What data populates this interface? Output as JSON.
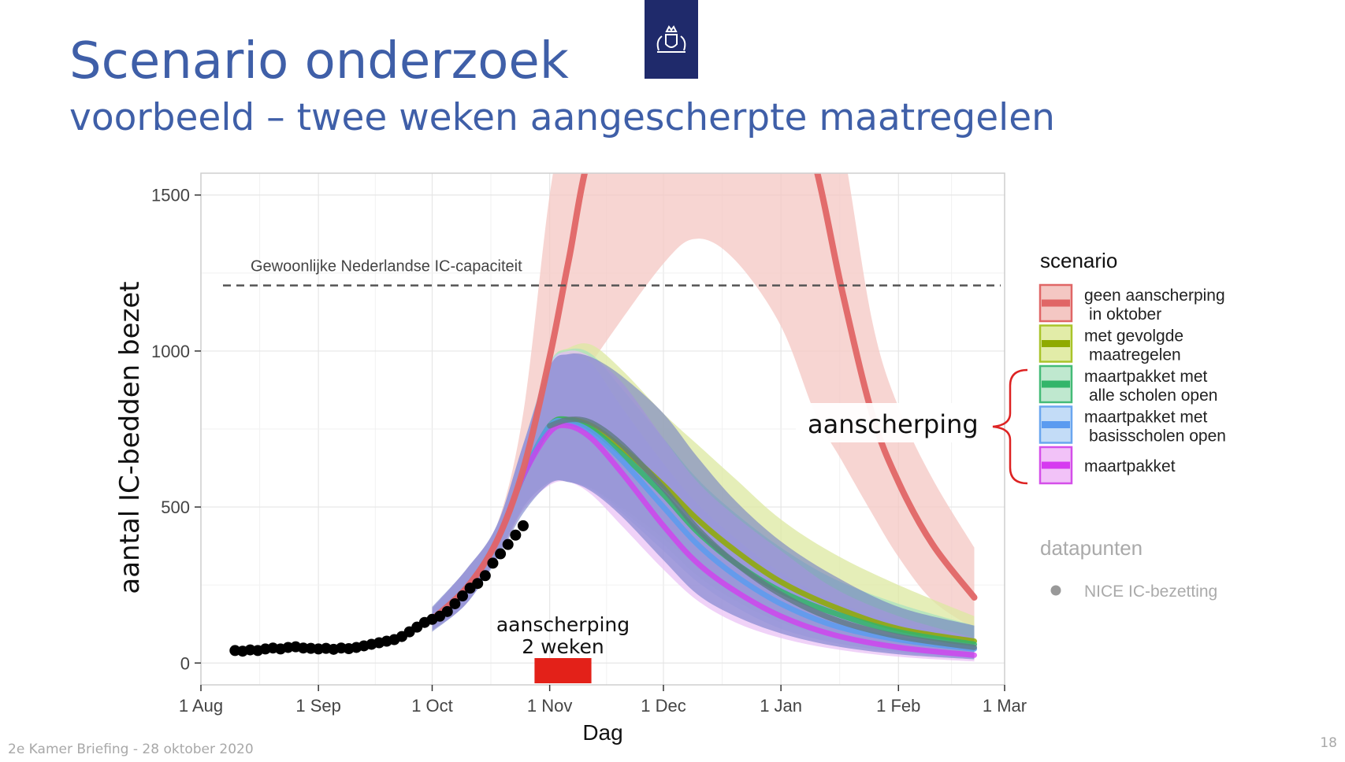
{
  "slide": {
    "title": "Scenario onderzoek",
    "subtitle": "voorbeeld – twee weken aangescherpte maatregelen",
    "footer": "2e Kamer Briefing - 28 oktober 2020",
    "page_number": "18",
    "logo_icon": "coat-of-arms-icon"
  },
  "chart_data": {
    "type": "line",
    "xlabel": "Dag",
    "ylabel": "aantal IC-bedden bezet",
    "x_unit": "date",
    "xlim": [
      "2020-08-01",
      "2021-03-01"
    ],
    "ylim": [
      -70,
      1570
    ],
    "x_ticks": [
      {
        "date": "2020-08-01",
        "label": "1 Aug"
      },
      {
        "date": "2020-09-01",
        "label": "1 Sep"
      },
      {
        "date": "2020-10-01",
        "label": "1 Oct"
      },
      {
        "date": "2020-11-01",
        "label": "1 Nov"
      },
      {
        "date": "2020-12-01",
        "label": "1 Dec"
      },
      {
        "date": "2021-01-01",
        "label": "1 Jan"
      },
      {
        "date": "2021-02-01",
        "label": "1 Feb"
      },
      {
        "date": "2021-03-01",
        "label": "1 Mar"
      }
    ],
    "y_ticks": [
      0,
      500,
      1000,
      1500
    ],
    "grid": true,
    "capacity_line": {
      "y": 1210,
      "label": "Gewoonlijke Nederlandse IC-capaciteit",
      "color": "#555555"
    },
    "intervention": {
      "start": "2020-10-28",
      "end": "2020-11-12",
      "label_line1": "aanscherping",
      "label_line2": "2 weken",
      "color": "#e32119"
    },
    "legend": {
      "title": "scenario",
      "position": "right",
      "entries": [
        {
          "label_line1": "geen aanscherping",
          "label_line2": "in oktober",
          "line_color": "#e06666",
          "fill_color": "#f4c7c3",
          "border_color": "#e06666"
        },
        {
          "label_line1": "met gevolgde",
          "label_line2": "maatregelen",
          "line_color": "#8faa00",
          "fill_color": "#e2eca8",
          "border_color": "#a9c42a"
        },
        {
          "label_line1": "maartpakket met",
          "label_line2": "alle scholen open",
          "line_color": "#33b56a",
          "fill_color": "#bfe8cf",
          "border_color": "#44bb77"
        },
        {
          "label_line1": "maartpakket met",
          "label_line2": "basisscholen open",
          "line_color": "#5b9bf0",
          "fill_color": "#c3dcf7",
          "border_color": "#6aa6ef"
        },
        {
          "label_line1": "maartpakket",
          "label_line2": "",
          "line_color": "#d63af0",
          "fill_color": "#f2c2f8",
          "border_color": "#d54fe9"
        }
      ],
      "bracket_label": "aanscherping",
      "bracket_color": "#dd2222",
      "points_title": "datapunten",
      "points_entry": "NICE IC-bezetting"
    },
    "series": [
      {
        "name": "geen aanscherping in oktober",
        "line_color": "#e06666",
        "band_color": "#f4c7c3",
        "band_opacity": 0.75,
        "line_opacity": 0.95,
        "points": [
          [
            "2020-10-01",
            140,
            105,
            175
          ],
          [
            "2020-10-10",
            240,
            190,
            300
          ],
          [
            "2020-10-18",
            390,
            340,
            440
          ],
          [
            "2020-10-25",
            620,
            500,
            800
          ],
          [
            "2020-11-01",
            980,
            700,
            1500
          ],
          [
            "2020-11-06",
            1290,
            850,
            1800
          ],
          [
            "2020-11-13",
            1700,
            980,
            2100
          ],
          [
            "2020-12-01",
            2300,
            1280,
            2500
          ],
          [
            "2020-12-10",
            2350,
            1360,
            2500
          ],
          [
            "2020-12-20",
            2250,
            1290,
            2450
          ],
          [
            "2021-01-01",
            1950,
            1080,
            2300
          ],
          [
            "2021-01-10",
            1600,
            800,
            2000
          ],
          [
            "2021-01-17",
            1200,
            650,
            1680
          ],
          [
            "2021-01-25",
            800,
            480,
            1100
          ],
          [
            "2021-02-01",
            580,
            340,
            820
          ],
          [
            "2021-02-10",
            380,
            200,
            590
          ],
          [
            "2021-02-21",
            210,
            110,
            370
          ]
        ]
      },
      {
        "name": "met gevolgde maatregelen",
        "line_color": "#8faa00",
        "band_color": "#dce8a0",
        "band_opacity": 0.75,
        "line_opacity": 0.85,
        "points": [
          [
            "2020-10-01",
            140,
            105,
            175
          ],
          [
            "2020-10-10",
            240,
            190,
            300
          ],
          [
            "2020-10-18",
            390,
            340,
            440
          ],
          [
            "2020-10-25",
            600,
            500,
            700
          ],
          [
            "2020-11-01",
            760,
            580,
            960
          ],
          [
            "2020-11-06",
            780,
            580,
            1010
          ],
          [
            "2020-11-12",
            760,
            560,
            1020
          ],
          [
            "2020-11-20",
            690,
            500,
            940
          ],
          [
            "2020-12-01",
            570,
            400,
            800
          ],
          [
            "2020-12-10",
            460,
            310,
            700
          ],
          [
            "2020-12-20",
            360,
            230,
            590
          ],
          [
            "2021-01-01",
            260,
            150,
            460
          ],
          [
            "2021-01-15",
            180,
            95,
            350
          ],
          [
            "2021-02-01",
            110,
            55,
            250
          ],
          [
            "2021-02-21",
            70,
            30,
            150
          ]
        ]
      },
      {
        "name": "maartpakket met alle scholen open",
        "line_color": "#33b56a",
        "band_color": "#a9e2bf",
        "band_opacity": 0.75,
        "line_opacity": 0.85,
        "points": [
          [
            "2020-10-01",
            140,
            105,
            175
          ],
          [
            "2020-10-10",
            240,
            190,
            300
          ],
          [
            "2020-10-18",
            390,
            340,
            440
          ],
          [
            "2020-10-25",
            600,
            500,
            700
          ],
          [
            "2020-11-01",
            760,
            580,
            960
          ],
          [
            "2020-11-06",
            780,
            580,
            1005
          ],
          [
            "2020-11-12",
            750,
            560,
            990
          ],
          [
            "2020-11-20",
            670,
            490,
            880
          ],
          [
            "2020-12-01",
            540,
            380,
            720
          ],
          [
            "2020-12-10",
            420,
            280,
            590
          ],
          [
            "2020-12-20",
            320,
            200,
            480
          ],
          [
            "2021-01-01",
            230,
            130,
            370
          ],
          [
            "2021-01-15",
            160,
            85,
            270
          ],
          [
            "2021-02-01",
            100,
            50,
            190
          ],
          [
            "2021-02-21",
            60,
            25,
            120
          ]
        ]
      },
      {
        "name": "maartpakket met basisscholen open",
        "line_color": "#5b9bf0",
        "band_color": "#b5d1f3",
        "band_opacity": 0.7,
        "line_opacity": 0.85,
        "points": [
          [
            "2020-10-01",
            140,
            105,
            175
          ],
          [
            "2020-10-10",
            240,
            190,
            300
          ],
          [
            "2020-10-18",
            390,
            340,
            440
          ],
          [
            "2020-10-25",
            600,
            500,
            700
          ],
          [
            "2020-11-01",
            760,
            580,
            960
          ],
          [
            "2020-11-06",
            770,
            580,
            990
          ],
          [
            "2020-11-12",
            740,
            555,
            960
          ],
          [
            "2020-11-20",
            650,
            480,
            820
          ],
          [
            "2020-12-01",
            500,
            360,
            640
          ],
          [
            "2020-12-10",
            380,
            260,
            510
          ],
          [
            "2020-12-20",
            280,
            180,
            400
          ],
          [
            "2021-01-01",
            190,
            110,
            290
          ],
          [
            "2021-01-15",
            120,
            65,
            200
          ],
          [
            "2021-02-01",
            75,
            35,
            130
          ],
          [
            "2021-02-21",
            45,
            15,
            80
          ]
        ]
      },
      {
        "name": "maartpakket",
        "line_color": "#d63af0",
        "band_color": "#eabff5",
        "band_opacity": 0.7,
        "line_opacity": 0.75,
        "points": [
          [
            "2020-10-01",
            140,
            105,
            175
          ],
          [
            "2020-10-10",
            240,
            190,
            300
          ],
          [
            "2020-10-18",
            390,
            340,
            440
          ],
          [
            "2020-10-25",
            600,
            490,
            700
          ],
          [
            "2020-11-01",
            740,
            570,
            950
          ],
          [
            "2020-11-06",
            760,
            580,
            1000
          ],
          [
            "2020-11-12",
            720,
            540,
            980
          ],
          [
            "2020-11-20",
            610,
            440,
            900
          ],
          [
            "2020-12-01",
            440,
            300,
            720
          ],
          [
            "2020-12-10",
            320,
            200,
            580
          ],
          [
            "2020-12-20",
            230,
            130,
            470
          ],
          [
            "2021-01-01",
            150,
            80,
            360
          ],
          [
            "2021-01-15",
            90,
            45,
            240
          ],
          [
            "2021-02-01",
            50,
            20,
            150
          ],
          [
            "2021-02-21",
            25,
            5,
            80
          ]
        ]
      }
    ],
    "overlay_band": {
      "color": "#6673c4",
      "opacity": 0.55,
      "points": [
        [
          "2020-10-01",
          100,
          180
        ],
        [
          "2020-10-10",
          190,
          300
        ],
        [
          "2020-10-18",
          330,
          440
        ],
        [
          "2020-10-25",
          480,
          700
        ],
        [
          "2020-11-01",
          575,
          950
        ],
        [
          "2020-11-06",
          580,
          990
        ],
        [
          "2020-11-12",
          550,
          980
        ],
        [
          "2020-11-20",
          470,
          920
        ],
        [
          "2020-12-01",
          330,
          800
        ],
        [
          "2020-12-10",
          220,
          660
        ],
        [
          "2020-12-20",
          150,
          520
        ],
        [
          "2021-01-01",
          95,
          390
        ],
        [
          "2021-01-15",
          55,
          280
        ],
        [
          "2021-02-01",
          28,
          180
        ],
        [
          "2021-02-21",
          12,
          120
        ]
      ]
    },
    "overlay_line": {
      "color": "#5f7a84",
      "opacity": 0.8,
      "points": [
        [
          "2020-11-01",
          760
        ],
        [
          "2020-11-06",
          780
        ],
        [
          "2020-11-12",
          770
        ],
        [
          "2020-11-20",
          700
        ],
        [
          "2020-12-01",
          560
        ],
        [
          "2020-12-10",
          430
        ],
        [
          "2020-12-20",
          320
        ],
        [
          "2021-01-01",
          220
        ],
        [
          "2021-01-15",
          140
        ],
        [
          "2021-02-01",
          85
        ],
        [
          "2021-02-21",
          50
        ]
      ]
    },
    "datapoints": {
      "name": "NICE IC-bezetting",
      "color": "#000000",
      "points": [
        [
          "2020-08-10",
          40
        ],
        [
          "2020-08-12",
          38
        ],
        [
          "2020-08-14",
          42
        ],
        [
          "2020-08-16",
          40
        ],
        [
          "2020-08-18",
          45
        ],
        [
          "2020-08-20",
          48
        ],
        [
          "2020-08-22",
          45
        ],
        [
          "2020-08-24",
          50
        ],
        [
          "2020-08-26",
          52
        ],
        [
          "2020-08-28",
          48
        ],
        [
          "2020-08-30",
          47
        ],
        [
          "2020-09-01",
          45
        ],
        [
          "2020-09-03",
          47
        ],
        [
          "2020-09-05",
          44
        ],
        [
          "2020-09-07",
          48
        ],
        [
          "2020-09-09",
          46
        ],
        [
          "2020-09-11",
          50
        ],
        [
          "2020-09-13",
          55
        ],
        [
          "2020-09-15",
          60
        ],
        [
          "2020-09-17",
          65
        ],
        [
          "2020-09-19",
          70
        ],
        [
          "2020-09-21",
          75
        ],
        [
          "2020-09-23",
          85
        ],
        [
          "2020-09-25",
          100
        ],
        [
          "2020-09-27",
          115
        ],
        [
          "2020-09-29",
          130
        ],
        [
          "2020-10-01",
          140
        ],
        [
          "2020-10-03",
          150
        ],
        [
          "2020-10-05",
          165
        ],
        [
          "2020-10-07",
          190
        ],
        [
          "2020-10-09",
          215
        ],
        [
          "2020-10-11",
          240
        ],
        [
          "2020-10-13",
          255
        ],
        [
          "2020-10-15",
          280
        ],
        [
          "2020-10-17",
          320
        ],
        [
          "2020-10-19",
          350
        ],
        [
          "2020-10-21",
          380
        ],
        [
          "2020-10-23",
          410
        ],
        [
          "2020-10-25",
          440
        ]
      ]
    }
  }
}
